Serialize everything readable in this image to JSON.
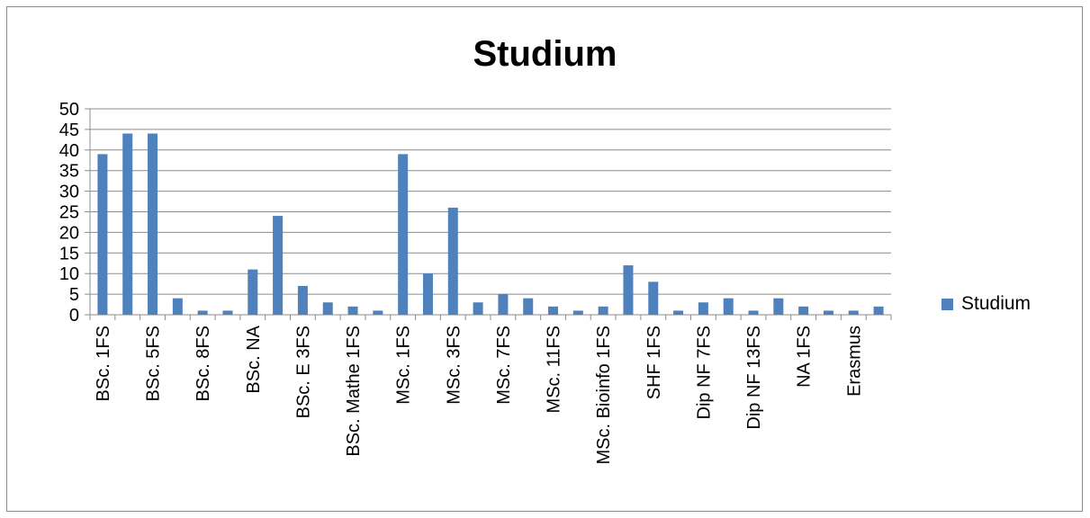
{
  "chart_data": {
    "type": "bar",
    "title": "Studium",
    "xlabel": "",
    "ylabel": "",
    "ylim": [
      0,
      50
    ],
    "yticks": [
      0,
      5,
      10,
      15,
      20,
      25,
      30,
      35,
      40,
      45,
      50
    ],
    "grid": true,
    "legend_position": "right",
    "bar_color": "#4f81bd",
    "categories": [
      "BSc. 1FS",
      "",
      "BSc. 5FS",
      "",
      "BSc. 8FS",
      "",
      "BSc. NA",
      "",
      "BSc. E 3FS",
      "",
      "BSc. Mathe 1FS",
      "",
      "MSc. 1FS",
      "",
      "MSc. 3FS",
      "",
      "MSc. 7FS",
      "",
      "MSc. 11FS",
      "",
      "MSc. Bioinfo 1FS",
      "",
      "SHF 1FS",
      "",
      "Dip NF 7FS",
      "",
      "Dip NF 13FS",
      "",
      "NA 1FS",
      "",
      "Erasmus",
      ""
    ],
    "series": [
      {
        "name": "Studium",
        "values": [
          39,
          44,
          44,
          4,
          1,
          1,
          11,
          24,
          7,
          3,
          2,
          1,
          39,
          10,
          26,
          3,
          5,
          4,
          2,
          1,
          2,
          12,
          8,
          1,
          3,
          4,
          1,
          4,
          2,
          1,
          1,
          2
        ]
      }
    ]
  }
}
